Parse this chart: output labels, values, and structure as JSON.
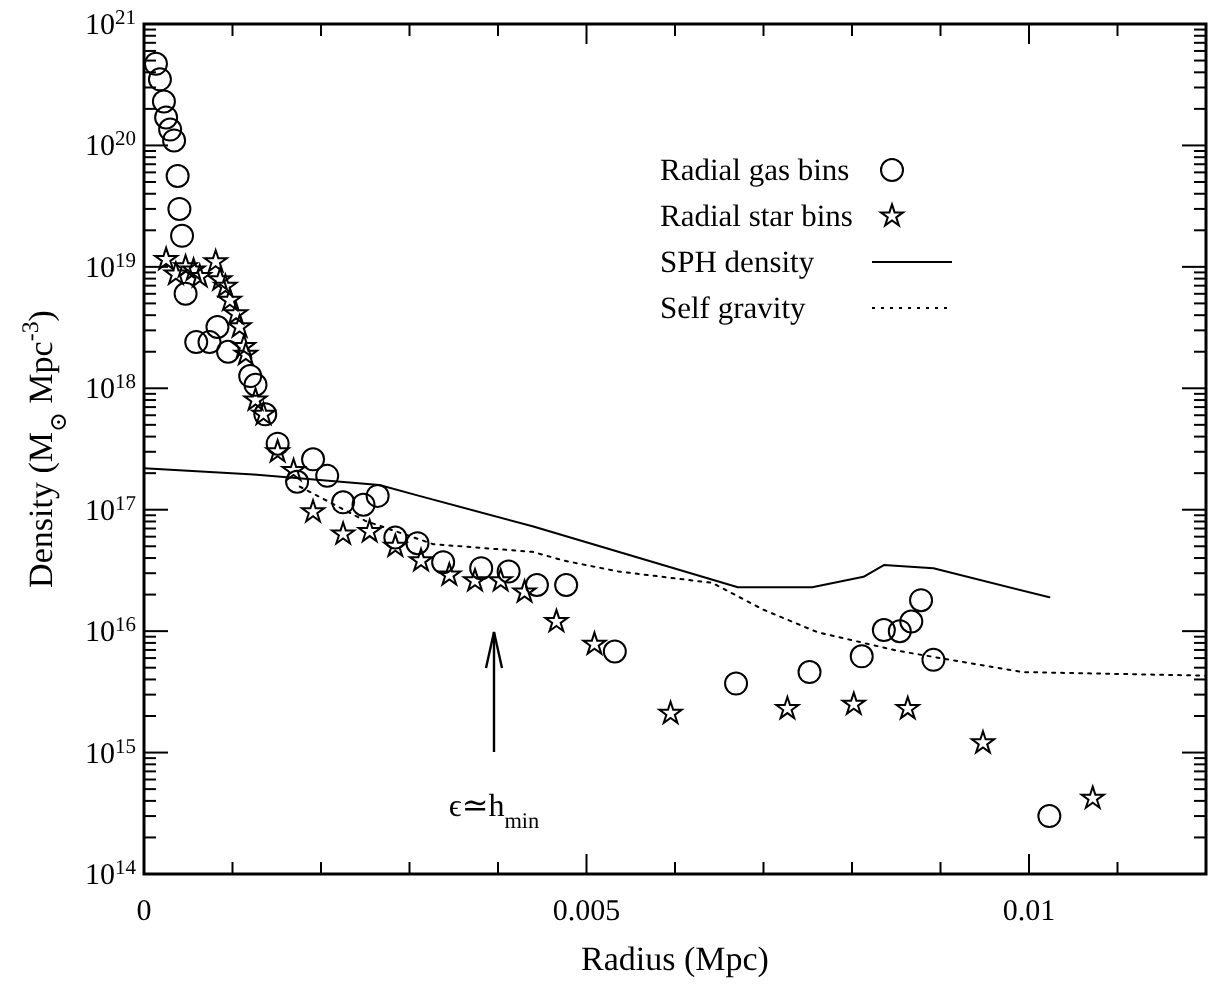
{
  "chart_data": {
    "type": "scatter",
    "xlabel": "Radius (Mpc)",
    "ylabel": "Density (M$_{⊙}$ Mpc$^{-3}$)",
    "log": "y",
    "legend": "top right",
    "grid": false,
    "xlim": [
      0,
      0.012
    ],
    "xticks": [
      0,
      {
        "value": 0.001,
        "label": null
      },
      {
        "value": 0.002,
        "label": null
      },
      {
        "value": 0.003,
        "label": null
      },
      {
        "value": 0.004,
        "label": null
      },
      0.005,
      {
        "value": 0.006,
        "label": null
      },
      {
        "value": 0.007,
        "label": null
      },
      {
        "value": 0.008,
        "label": null
      },
      {
        "value": 0.009,
        "label": null
      },
      0.01,
      {
        "value": 0.011,
        "label": null
      }
    ],
    "ylim": [
      100000000000000.0,
      1e+21
    ],
    "yticks": [
      {
        "value": 100000000000000.0,
        "label": "10$^{14}$"
      },
      {
        "value": 1000000000000000.0,
        "label": "10$^{15}$"
      },
      {
        "value": 1e+16,
        "label": "10$^{16}$"
      },
      {
        "value": 1e+17,
        "label": "10$^{17}$"
      },
      {
        "value": 1e+18,
        "label": "10$^{18}$"
      },
      {
        "value": 1e+19,
        "label": "10$^{19}$"
      },
      {
        "value": 1e+20,
        "label": "10$^{20}$"
      },
      {
        "value": 1e+21,
        "label": "10$^{21}$"
      }
    ],
    "series": [
      {
        "name": "Radial gas bins",
        "marker": "circle",
        "color": "#000000",
        "x": [
          0.000135,
          0.00018,
          0.000225,
          0.00025,
          0.000295,
          0.00034,
          0.00038,
          0.0004,
          0.00043,
          0.00047,
          0.00059,
          0.00074,
          0.00083,
          0.00095,
          0.0012,
          0.00126,
          0.00137,
          0.00151,
          0.00173,
          0.00191,
          0.00207,
          0.00225,
          0.00248,
          0.00264,
          0.00284,
          0.00309,
          0.00338,
          0.00381,
          0.00412,
          0.00444,
          0.00477,
          0.00532,
          0.00669,
          0.00752,
          0.00811,
          0.00836,
          0.00854,
          0.00867,
          0.00878,
          0.00892,
          0.01023
        ],
        "values": [
          4.7e+20,
          3.5e+20,
          2.3e+20,
          1.7e+20,
          1.35e+20,
          1.1e+20,
          5.6e+19,
          3e+19,
          1.8e+19,
          6e+18,
          2.4e+18,
          2.4e+18,
          3.2e+18,
          2e+18,
          1.26e+18,
          1.07e+18,
          6.1e+17,
          3.5e+17,
          1.7e+17,
          2.6e+17,
          1.9e+17,
          1.15e+17,
          1.1e+17,
          1.3e+17,
          5.9e+16,
          5.3e+16,
          3.7e+16,
          3.3e+16,
          3.1e+16,
          2.4e+16,
          2.4e+16,
          6800000000000000.0,
          3700000000000000.0,
          4600000000000000.0,
          6200000000000000.0,
          1.02e+16,
          1e+16,
          1.2e+16,
          1.8e+16,
          5800000000000000.0,
          300000000000000.0
        ]
      },
      {
        "name": "Radial star bins",
        "marker": "star",
        "color": "#000000",
        "x": [
          0.00025,
          0.00036,
          0.00047,
          0.00056,
          0.00063,
          0.00081,
          0.00086,
          0.00092,
          0.00097,
          0.00104,
          0.00108,
          0.00113,
          0.00115,
          0.00126,
          0.00135,
          0.00151,
          0.00169,
          0.00191,
          0.00225,
          0.00255,
          0.00284,
          0.00313,
          0.00345,
          0.00374,
          0.00403,
          0.0043,
          0.00466,
          0.00509,
          0.00595,
          0.00727,
          0.00802,
          0.00863,
          0.00948,
          0.01072
        ],
        "values": [
          1.15e+19,
          8.7e+18,
          1e+19,
          9.4e+18,
          8.3e+18,
          1.1e+19,
          7.8e+18,
          6.9e+18,
          5.3e+18,
          4.1e+18,
          3.2e+18,
          2.2e+18,
          1.9e+18,
          8e+17,
          6.1e+17,
          3e+17,
          2.1e+17,
          9.6e+16,
          6.3e+16,
          6.6e+16,
          5e+16,
          3.8e+16,
          2.9e+16,
          2.6e+16,
          2.6e+16,
          2.1e+16,
          1.2e+16,
          7800000000000000.0,
          2100000000000000.0,
          2300000000000000.0,
          2500000000000000.0,
          2300000000000000.0,
          1200000000000000.0,
          420000000000000.0
        ]
      },
      {
        "name": "SPH density",
        "type": "line",
        "line_style": "solid",
        "marker": "none",
        "color": "#000000",
        "x": [
          0,
          0.00124,
          0.00266,
          0.00311,
          0.00439,
          0.00671,
          0.00755,
          0.00813,
          0.00836,
          0.00892,
          0.01023
        ],
        "values": [
          2.2e+17,
          1.95e+17,
          1.6e+17,
          1.3e+17,
          7.3e+16,
          2.3e+16,
          2.3e+16,
          2.8e+16,
          3.5e+16,
          3.3e+16,
          1.9e+16
        ]
      },
      {
        "name": "Self gravity",
        "type": "line",
        "line_style": "dotted",
        "marker": "none",
        "color": "#000000",
        "x": [
          0.00176,
          0.0025,
          0.00327,
          0.00439,
          0.00475,
          0.00536,
          0.00642,
          0.007,
          0.00761,
          0.00851,
          0.00993,
          0.012
        ],
        "values": [
          1.55e+17,
          8.1e+16,
          5.2e+16,
          4.5e+16,
          3.8e+16,
          3.1e+16,
          2.5e+16,
          1.5e+16,
          9800000000000000.0,
          6900000000000000.0,
          4600000000000000.0,
          4300000000000000.0
        ]
      }
    ],
    "annotations": [
      "ϵ≃h$_{min}$"
    ]
  }
}
